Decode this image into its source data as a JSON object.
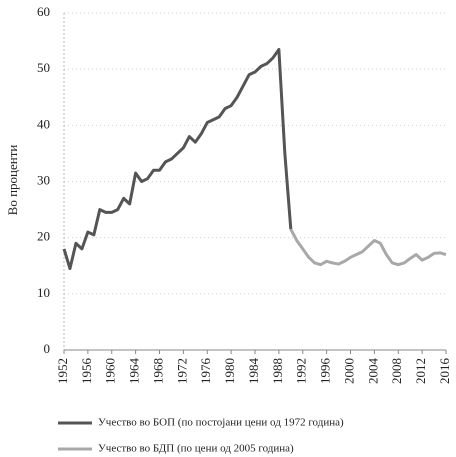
{
  "chart_data": {
    "type": "line",
    "y_label": "Во проценти",
    "x": [
      1952,
      1953,
      1954,
      1955,
      1956,
      1957,
      1958,
      1959,
      1960,
      1961,
      1962,
      1963,
      1964,
      1965,
      1966,
      1967,
      1968,
      1969,
      1970,
      1971,
      1972,
      1973,
      1974,
      1975,
      1976,
      1977,
      1978,
      1979,
      1980,
      1981,
      1982,
      1983,
      1984,
      1985,
      1986,
      1987,
      1988,
      1989,
      1990,
      1991,
      1992,
      1993,
      1994,
      1995,
      1996,
      1997,
      1998,
      1999,
      2000,
      2001,
      2002,
      2003,
      2004,
      2005,
      2006,
      2007,
      2008,
      2009,
      2010,
      2011,
      2012,
      2013,
      2014,
      2015,
      2016
    ],
    "series": [
      {
        "name": "Учество во БОП (по постојани цени од 1972 година)",
        "color": "#555555",
        "values": [
          18,
          14.5,
          19,
          18,
          21,
          20.5,
          25,
          24.5,
          24.5,
          25,
          27,
          26,
          31.5,
          30,
          30.5,
          32,
          32,
          33.5,
          34,
          35,
          36,
          38,
          37,
          38.5,
          40.5,
          41,
          41.5,
          43,
          43.5,
          45,
          47,
          49,
          49.5,
          50.5,
          51,
          52,
          53.5,
          35,
          21.5,
          null,
          null,
          null,
          null,
          null,
          null,
          null,
          null,
          null,
          null,
          null,
          null,
          null,
          null,
          null,
          null,
          null,
          null,
          null,
          null,
          null,
          null,
          null,
          null,
          null,
          null
        ]
      },
      {
        "name": "Учество во БДП (по цени од 2005 година)",
        "color": "#a8a8a8",
        "values": [
          null,
          null,
          null,
          null,
          null,
          null,
          null,
          null,
          null,
          null,
          null,
          null,
          null,
          null,
          null,
          null,
          null,
          null,
          null,
          null,
          null,
          null,
          null,
          null,
          null,
          null,
          null,
          null,
          null,
          null,
          null,
          null,
          null,
          null,
          null,
          null,
          null,
          null,
          21.5,
          19.5,
          18,
          16.5,
          15.5,
          15.2,
          15.8,
          15.5,
          15.3,
          15.8,
          16.5,
          17,
          17.5,
          18.5,
          19.5,
          19,
          17,
          15.5,
          15.2,
          15.5,
          16.3,
          17,
          16,
          16.5,
          17.2,
          17.3,
          17
        ]
      }
    ],
    "xlim": [
      1952,
      2016
    ],
    "xticks": [
      1952,
      1956,
      1960,
      1964,
      1968,
      1972,
      1976,
      1980,
      1984,
      1988,
      1992,
      1996,
      2000,
      2004,
      2008,
      2012,
      2016
    ],
    "ylim": [
      0,
      60
    ],
    "yticks": [
      0,
      10,
      20,
      30,
      40,
      50,
      60
    ],
    "grid": true
  }
}
